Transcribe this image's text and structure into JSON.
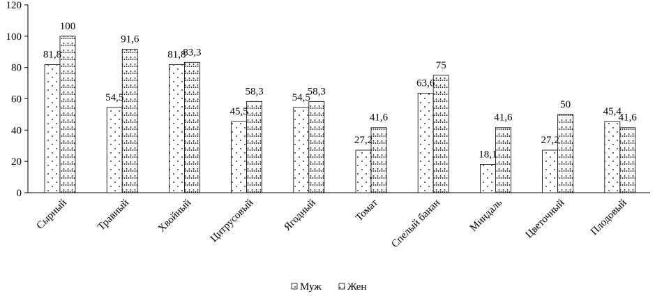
{
  "chart_data": {
    "type": "bar",
    "categories": [
      "Сырный",
      "Травный",
      "Хвойный",
      "Цитрусовый",
      "Ягодный",
      "Томат",
      "Спелый банан",
      "Миндаль",
      "Цветочный",
      "Плодовый"
    ],
    "series": [
      {
        "name": "Муж",
        "values": [
          81.8,
          54.5,
          81.8,
          45.5,
          54.5,
          27.2,
          63.6,
          18.1,
          27.2,
          45.4
        ],
        "labels": [
          "81,8",
          "54,5",
          "81,8",
          "45,5",
          "54,5",
          "27,2",
          "63,6",
          "18,1",
          "27,2",
          "45,4"
        ]
      },
      {
        "name": "Жен",
        "values": [
          100,
          91.6,
          83.3,
          58.3,
          58.3,
          41.6,
          75,
          41.6,
          50,
          41.6
        ],
        "labels": [
          "100",
          "91,6",
          "83,3",
          "58,3",
          "58,3",
          "41,6",
          "75",
          "41,6",
          "50",
          "41,6"
        ]
      }
    ],
    "ylim": [
      0,
      120
    ],
    "yticks": [
      "0",
      "20",
      "40",
      "60",
      "80",
      "100",
      "120"
    ],
    "grid": false,
    "legend": "bottom",
    "colors": {
      "bar_fill": "#ffffff",
      "stroke": "#000000"
    }
  }
}
